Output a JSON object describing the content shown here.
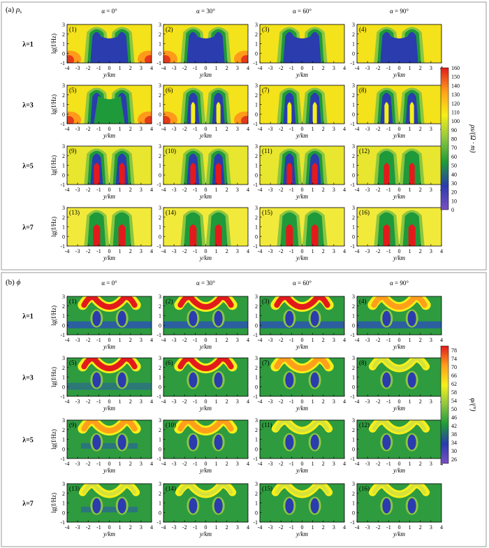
{
  "chart_data": [
    {
      "type": "heatmap",
      "panel": "(a)",
      "symbol": "ρ",
      "symbol_sub": "s",
      "column_headers": [
        "α = 0°",
        "α = 30°",
        "α = 60°",
        "α = 90°"
      ],
      "row_headers": [
        "λ=1",
        "λ=3",
        "λ=5",
        "λ=7"
      ],
      "subplot_labels": [
        "(1)",
        "(2)",
        "(3)",
        "(4)",
        "(5)",
        "(6)",
        "(7)",
        "(8)",
        "(9)",
        "(10)",
        "(11)",
        "(12)",
        "(13)",
        "(14)",
        "(15)",
        "(16)"
      ],
      "xlabel": "y/km",
      "ylabel": "lg(f/Hz)",
      "x_ticks": [
        "-4",
        "-3",
        "-2",
        "-1",
        "0",
        "1",
        "2",
        "3",
        "4"
      ],
      "y_ticks": [
        "3",
        "2",
        "1",
        "0",
        "-1"
      ],
      "xlim": [
        -4,
        4
      ],
      "ylim": [
        -1,
        3
      ],
      "colorbar_label": "ρs/(Ω · m)",
      "colorbar_ticks": [
        "160",
        "150",
        "140",
        "130",
        "120",
        "110",
        "100",
        "90",
        "80",
        "70",
        "60",
        "50",
        "40",
        "30",
        "20",
        "10",
        "0"
      ],
      "colorbar_range": [
        0,
        160
      ],
      "colormap": [
        "#7b4fc4",
        "#2a3cae",
        "#1f9a3a",
        "#8cc63f",
        "#f6ef1a",
        "#ff9f1a",
        "#e31a1c"
      ]
    },
    {
      "type": "heatmap",
      "panel": "(b)",
      "symbol": "ϕ",
      "column_headers": [
        "α = 0°",
        "α = 30°",
        "α = 60°",
        "α = 90°"
      ],
      "row_headers": [
        "λ=1",
        "λ=3",
        "λ=5",
        "λ=7"
      ],
      "subplot_labels": [
        "(1)",
        "(2)",
        "(3)",
        "(4)",
        "(5)",
        "(6)",
        "(7)",
        "(8)",
        "(9)",
        "(10)",
        "(11)",
        "(12)",
        "(13)",
        "(14)",
        "(15)",
        "(16)"
      ],
      "xlabel": "y/km",
      "ylabel": "lg(f/Hz)",
      "x_ticks": [
        "-4",
        "-3",
        "-2",
        "-1",
        "0",
        "1",
        "2",
        "3",
        "4"
      ],
      "y_ticks": [
        "3",
        "2",
        "1",
        "0",
        "-1"
      ],
      "xlim": [
        -4,
        4
      ],
      "ylim": [
        -1,
        3
      ],
      "colorbar_label": "φ/(°)",
      "colorbar_ticks": [
        "78",
        "74",
        "70",
        "66",
        "62",
        "58",
        "54",
        "50",
        "46",
        "42",
        "38",
        "34",
        "30",
        "26"
      ],
      "colorbar_range": [
        24,
        80
      ],
      "colormap": [
        "#7b4fc4",
        "#2a3cae",
        "#1f9a3a",
        "#8cc63f",
        "#f6ef1a",
        "#ff9f1a",
        "#e31a1c"
      ]
    }
  ]
}
